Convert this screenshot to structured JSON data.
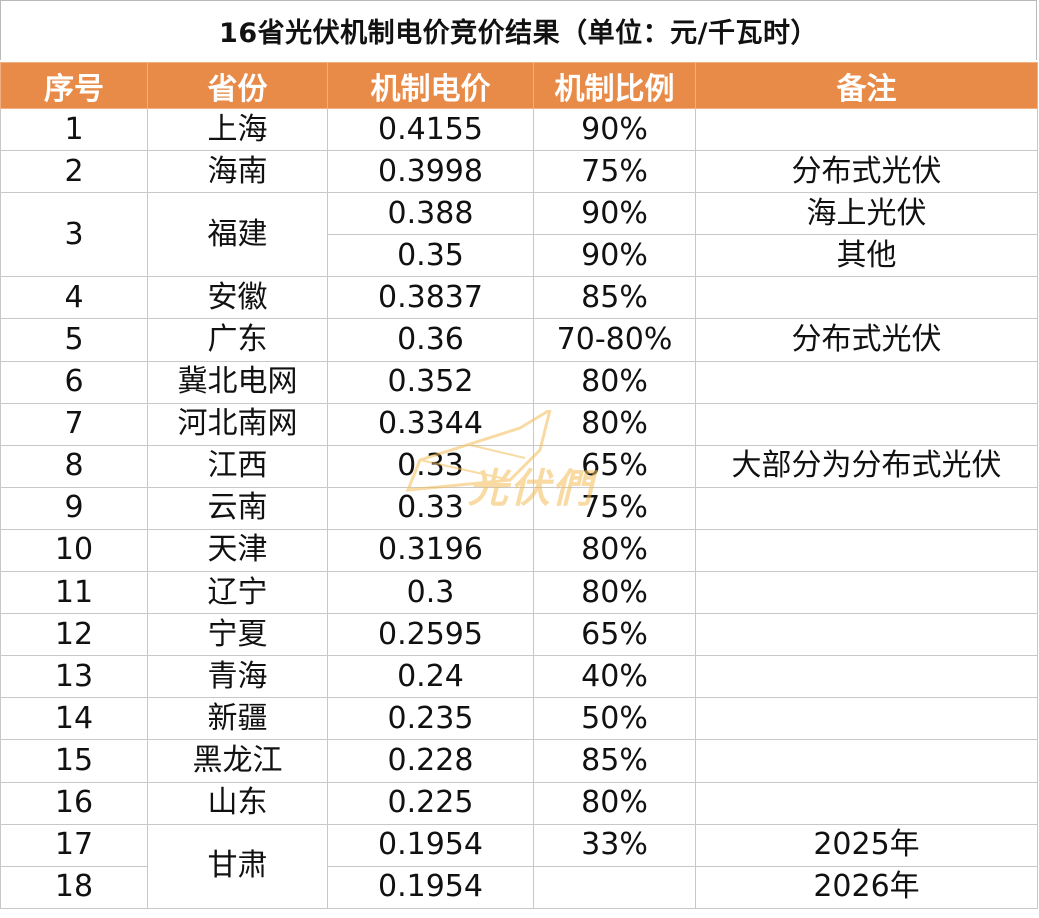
{
  "title": "16省光伏机制电价竞价结果（单位：元/千瓦时）",
  "headers": {
    "index": "序号",
    "province": "省份",
    "price": "机制电价",
    "ratio": "机制比例",
    "note": "备注"
  },
  "rows": [
    {
      "index": "1",
      "province": "上海",
      "price": "0.4155",
      "ratio": "90%",
      "note": ""
    },
    {
      "index": "2",
      "province": "海南",
      "price": "0.3998",
      "ratio": "75%",
      "note": "分布式光伏"
    },
    {
      "index": "3",
      "province": "福建",
      "price": "0.388",
      "ratio": "90%",
      "note": "海上光伏"
    },
    {
      "index": "",
      "province": "",
      "price": "0.35",
      "ratio": "90%",
      "note": "其他"
    },
    {
      "index": "4",
      "province": "安徽",
      "price": "0.3837",
      "ratio": "85%",
      "note": ""
    },
    {
      "index": "5",
      "province": "广东",
      "price": "0.36",
      "ratio": "70-80%",
      "note": "分布式光伏"
    },
    {
      "index": "6",
      "province": "冀北电网",
      "price": "0.352",
      "ratio": "80%",
      "note": ""
    },
    {
      "index": "7",
      "province": "河北南网",
      "price": "0.3344",
      "ratio": "80%",
      "note": ""
    },
    {
      "index": "8",
      "province": "江西",
      "price": "0.33",
      "ratio": "65%",
      "note": "大部分为分布式光伏"
    },
    {
      "index": "9",
      "province": "云南",
      "price": "0.33",
      "ratio": "75%",
      "note": ""
    },
    {
      "index": "10",
      "province": "天津",
      "price": "0.3196",
      "ratio": "80%",
      "note": ""
    },
    {
      "index": "11",
      "province": "辽宁",
      "price": "0.3",
      "ratio": "80%",
      "note": ""
    },
    {
      "index": "12",
      "province": "宁夏",
      "price": "0.2595",
      "ratio": "65%",
      "note": ""
    },
    {
      "index": "13",
      "province": "青海",
      "price": "0.24",
      "ratio": "40%",
      "note": ""
    },
    {
      "index": "14",
      "province": "新疆",
      "price": "0.235",
      "ratio": "50%",
      "note": ""
    },
    {
      "index": "15",
      "province": "黑龙江",
      "price": "0.228",
      "ratio": "85%",
      "note": ""
    },
    {
      "index": "16",
      "province": "山东",
      "price": "0.225",
      "ratio": "80%",
      "note": ""
    },
    {
      "index": "17",
      "province": "甘肃",
      "price": "0.1954",
      "ratio": "33%",
      "note": "2025年"
    },
    {
      "index": "18",
      "province": "",
      "price": "0.1954",
      "ratio": "",
      "note": "2026年"
    }
  ],
  "watermark": {
    "text": "光伏們"
  },
  "colors": {
    "header_bg": "#e98b48",
    "header_text": "#ffffff",
    "watermark": "#f3bd57"
  }
}
